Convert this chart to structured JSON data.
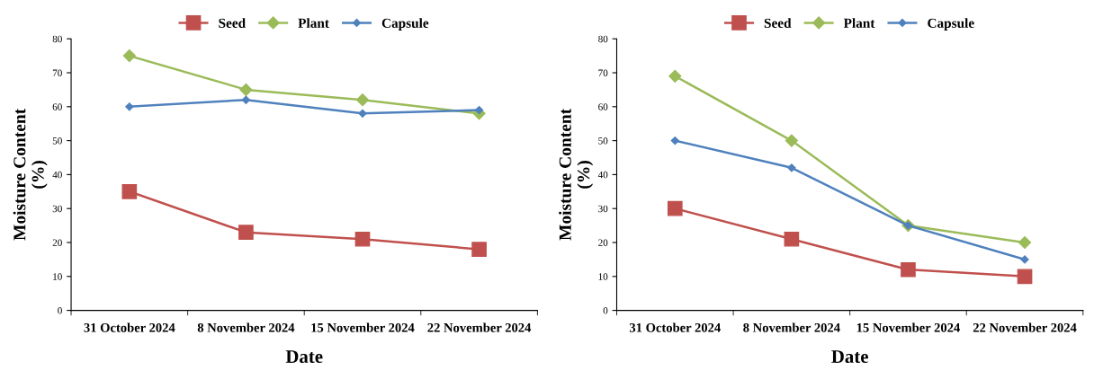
{
  "chart_data": [
    {
      "type": "line",
      "xlabel": "Date",
      "ylabel": "Moisture Content\n(%)",
      "categories": [
        "31 October 2024",
        "8 November 2024",
        "15 November 2024",
        "22 November 2024"
      ],
      "series": [
        {
          "name": "Seed",
          "color": "#c0504d",
          "marker": "square",
          "values": [
            35,
            23,
            21,
            18
          ]
        },
        {
          "name": "Plant",
          "color": "#9bbb59",
          "marker": "diamond",
          "values": [
            75,
            65,
            62,
            58
          ]
        },
        {
          "name": "Capsule",
          "color": "#4f81bd",
          "marker": "diamond",
          "values": [
            60,
            62,
            58,
            59
          ]
        }
      ],
      "ylim": [
        0,
        80
      ],
      "yticks": [
        0,
        10,
        20,
        30,
        40,
        50,
        60,
        70,
        80
      ],
      "grid": false,
      "legend": "top"
    },
    {
      "type": "line",
      "xlabel": "Date",
      "ylabel": "Moisture Content\n(%)",
      "categories": [
        "31 October 2024",
        "8 November 2024",
        "15 November 2024",
        "22 November 2024"
      ],
      "series": [
        {
          "name": "Seed",
          "color": "#c0504d",
          "marker": "square",
          "values": [
            30,
            21,
            12,
            10
          ]
        },
        {
          "name": "Plant",
          "color": "#9bbb59",
          "marker": "diamond",
          "values": [
            69,
            50,
            25,
            20
          ]
        },
        {
          "name": "Capsule",
          "color": "#4f81bd",
          "marker": "diamond",
          "values": [
            50,
            42,
            25,
            15
          ]
        }
      ],
      "ylim": [
        0,
        80
      ],
      "yticks": [
        0,
        10,
        20,
        30,
        40,
        50,
        60,
        70,
        80
      ],
      "grid": false,
      "legend": "top"
    }
  ]
}
